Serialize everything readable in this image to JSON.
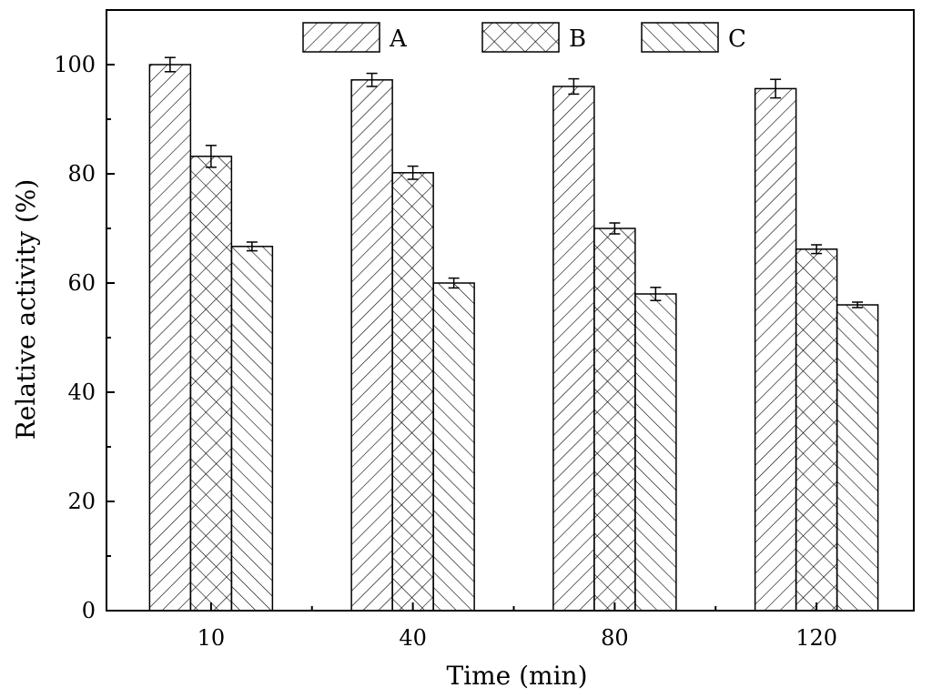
{
  "chart_data": {
    "type": "bar",
    "title": "",
    "xlabel": "Time (min)",
    "ylabel": "Relative activity (%)",
    "categories": [
      "10",
      "40",
      "80",
      "120"
    ],
    "ylim": [
      0,
      110
    ],
    "yticks": [
      0,
      20,
      40,
      60,
      80,
      100
    ],
    "grid": false,
    "legend_position": "top",
    "series": [
      {
        "name": "A",
        "pattern": "forward-hatch",
        "values": [
          100,
          97.2,
          96,
          95.6
        ],
        "errors": [
          1.3,
          1.2,
          1.4,
          1.7
        ]
      },
      {
        "name": "B",
        "pattern": "cross-hatch",
        "values": [
          83.2,
          80.2,
          70,
          66.2
        ],
        "errors": [
          2.0,
          1.2,
          1.0,
          0.8
        ]
      },
      {
        "name": "C",
        "pattern": "back-hatch",
        "values": [
          66.7,
          60,
          58,
          56
        ],
        "errors": [
          0.8,
          0.9,
          1.2,
          0.5
        ]
      }
    ],
    "colors": {
      "stroke": "#000000",
      "fill": "#ffffff"
    }
  }
}
